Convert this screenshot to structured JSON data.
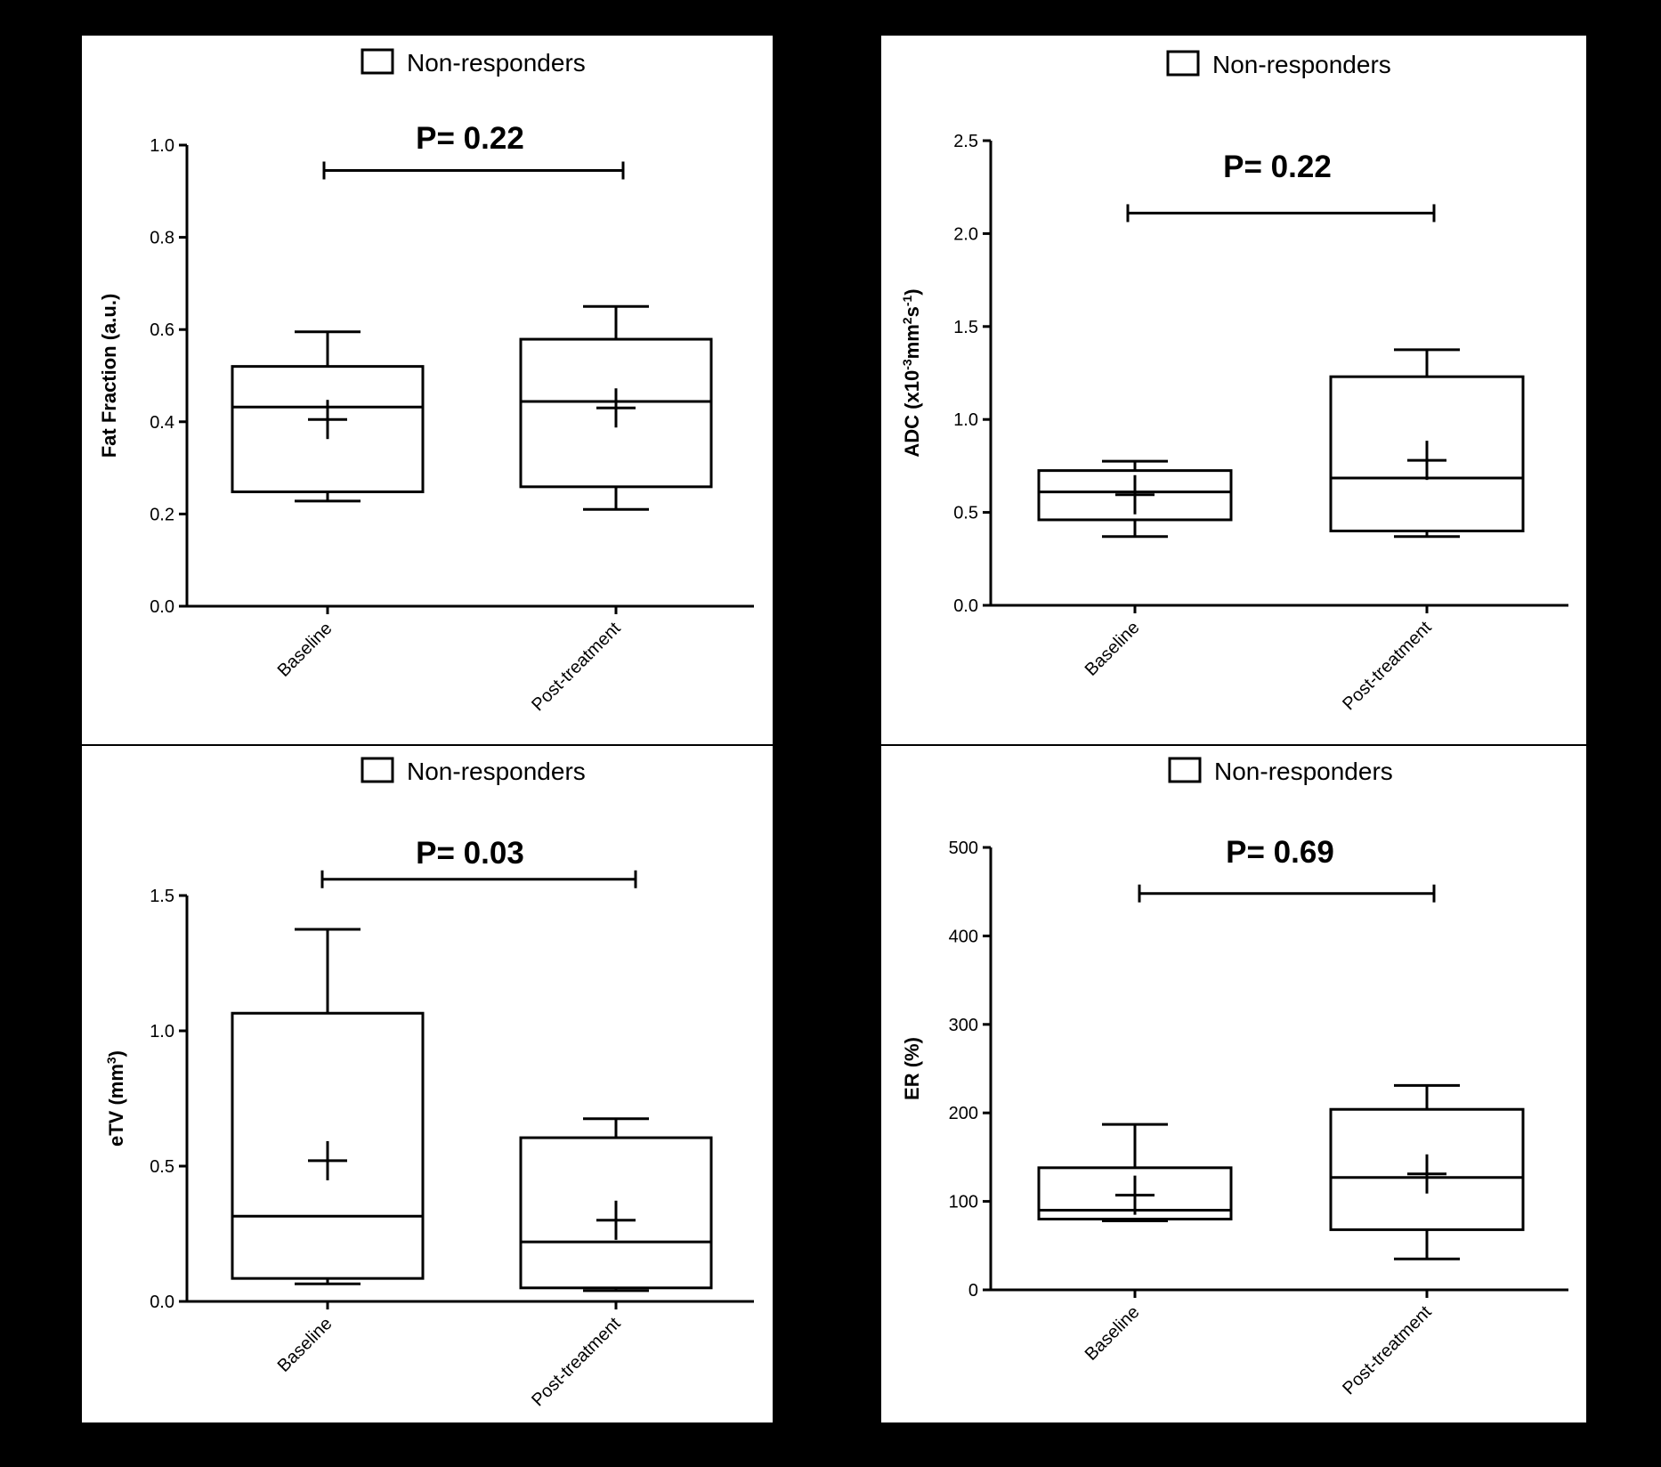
{
  "chart_data": [
    {
      "type": "box",
      "legend": "Non-responders",
      "ylabel": "Fat Fraction (a.u.)",
      "ylim": [
        0,
        1.0
      ],
      "yticks": [
        {
          "v": 0.0,
          "label": "0.0"
        },
        {
          "v": 0.2,
          "label": "0.2"
        },
        {
          "v": 0.4,
          "label": "0.4"
        },
        {
          "v": 0.6,
          "label": "0.6"
        },
        {
          "v": 0.8,
          "label": "0.8"
        },
        {
          "v": 1.0,
          "label": "1.0"
        }
      ],
      "categories": [
        "Baseline",
        "Post-treatment"
      ],
      "boxes": [
        {
          "min": 0.228,
          "q1": 0.248,
          "median": 0.432,
          "q3": 0.52,
          "max": 0.595,
          "mean": 0.405
        },
        {
          "min": 0.21,
          "q1": 0.259,
          "median": 0.444,
          "q3": 0.579,
          "max": 0.65,
          "mean": 0.43
        }
      ],
      "pvalue": "P= 0.22",
      "bracket_y": 0.945,
      "grid": false
    },
    {
      "type": "box",
      "legend": "Non-responders",
      "ylabel_parts": [
        "ADC (x10",
        "-3",
        "mm",
        "2",
        "s",
        "-1",
        ")"
      ],
      "ylim": [
        0,
        2.5
      ],
      "yticks": [
        {
          "v": 0.0,
          "label": "0.0"
        },
        {
          "v": 0.5,
          "label": "0.5"
        },
        {
          "v": 1.0,
          "label": "1.0"
        },
        {
          "v": 1.5,
          "label": "1.5"
        },
        {
          "v": 2.0,
          "label": "2.0"
        },
        {
          "v": 2.5,
          "label": "2.5"
        }
      ],
      "categories": [
        "Baseline",
        "Post-treatment"
      ],
      "boxes": [
        {
          "min": 0.37,
          "q1": 0.46,
          "median": 0.61,
          "q3": 0.725,
          "max": 0.775,
          "mean": 0.595
        },
        {
          "min": 0.37,
          "q1": 0.4,
          "median": 0.685,
          "q3": 1.23,
          "max": 1.375,
          "mean": 0.78
        }
      ],
      "pvalue": "P= 0.22",
      "bracket_y": 2.11,
      "grid": false
    },
    {
      "type": "box",
      "legend": "Non-responders",
      "ylabel_parts": [
        "eTV (mm",
        "3",
        ")"
      ],
      "ylim": [
        0,
        1.5
      ],
      "yticks": [
        {
          "v": 0.0,
          "label": "0.0"
        },
        {
          "v": 0.5,
          "label": "0.5"
        },
        {
          "v": 1.0,
          "label": "1.0"
        },
        {
          "v": 1.5,
          "label": "1.5"
        }
      ],
      "categories": [
        "Baseline",
        "Post-treatment"
      ],
      "boxes": [
        {
          "min": 0.065,
          "q1": 0.085,
          "median": 0.315,
          "q3": 1.065,
          "max": 1.375,
          "mean": 0.52
        },
        {
          "min": 0.04,
          "q1": 0.05,
          "median": 0.22,
          "q3": 0.605,
          "max": 0.675,
          "mean": 0.3
        }
      ],
      "pvalue": "P= 0.03",
      "bracket_y": 1.56,
      "grid": false
    },
    {
      "type": "box",
      "legend": "Non-responders",
      "ylabel": "ER (%)",
      "ylim": [
        0,
        500
      ],
      "yticks": [
        {
          "v": 0,
          "label": "0"
        },
        {
          "v": 100,
          "label": "100"
        },
        {
          "v": 200,
          "label": "200"
        },
        {
          "v": 300,
          "label": "300"
        },
        {
          "v": 400,
          "label": "400"
        },
        {
          "v": 500,
          "label": "500"
        }
      ],
      "categories": [
        "Baseline",
        "Post-treatment"
      ],
      "boxes": [
        {
          "min": 78,
          "q1": 80,
          "median": 90,
          "q3": 138,
          "max": 187,
          "mean": 107
        },
        {
          "min": 35,
          "q1": 68,
          "median": 127,
          "q3": 204,
          "max": 231,
          "mean": 131
        }
      ],
      "pvalue": "P= 0.69",
      "bracket_y": 448,
      "grid": false
    }
  ]
}
